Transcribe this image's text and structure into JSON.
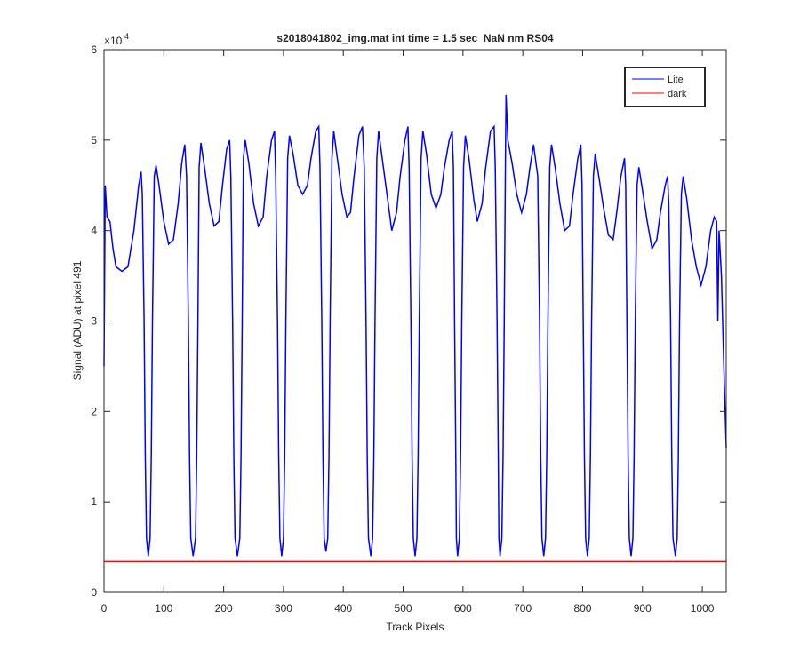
{
  "chart_data": {
    "type": "line",
    "title": "s2018041802_img.mat int time = 1.5 sec  NaN nm RS04",
    "x_label": "Track Pixels",
    "y_label": "Signal (ADU) at pixel 491",
    "y_exponent": {
      "base": "×10",
      "power": "4"
    },
    "xlim": [
      0,
      1040
    ],
    "ylim": [
      0,
      6
    ],
    "xticks": [
      0,
      100,
      200,
      300,
      400,
      500,
      600,
      700,
      800,
      900,
      1000
    ],
    "yticks": [
      0,
      1,
      2,
      3,
      4,
      5,
      6
    ],
    "grid": false,
    "legend": "northeast",
    "series": [
      {
        "name": "Lite",
        "color": "#0000ff",
        "x": [
          0,
          2,
          5,
          10,
          15,
          20,
          30,
          40,
          50,
          58,
          62,
          64,
          67,
          69,
          71,
          74,
          77,
          79,
          81,
          84,
          87,
          92,
          100,
          108,
          116,
          124,
          130,
          135,
          138,
          141,
          143,
          145,
          149,
          153,
          155,
          157,
          159,
          162,
          168,
          176,
          184,
          192,
          198,
          205,
          210,
          212,
          215,
          217,
          219,
          223,
          227,
          229,
          231,
          233,
          236,
          242,
          250,
          258,
          266,
          272,
          280,
          285,
          287,
          290,
          292,
          294,
          297,
          300,
          302,
          304,
          307,
          310,
          316,
          324,
          332,
          340,
          346,
          354,
          359,
          361,
          364,
          366,
          368,
          371,
          374,
          376,
          378,
          381,
          384,
          390,
          398,
          406,
          412,
          418,
          426,
          432,
          435,
          438,
          440,
          442,
          446,
          449,
          451,
          453,
          456,
          459,
          465,
          473,
          481,
          489,
          495,
          503,
          508,
          510,
          513,
          515,
          517,
          520,
          523,
          525,
          527,
          530,
          533,
          539,
          547,
          555,
          563,
          569,
          577,
          582,
          584,
          586,
          588,
          589,
          591,
          594,
          596,
          598,
          601,
          604,
          610,
          618,
          624,
          632,
          638,
          646,
          652,
          654,
          657,
          659,
          660,
          662,
          665,
          667,
          669,
          671,
          672,
          675,
          682,
          690,
          698,
          706,
          712,
          718,
          725,
          728,
          730,
          732,
          735,
          738,
          740,
          742,
          745,
          748,
          754,
          762,
          770,
          778,
          784,
          792,
          797,
          799,
          801,
          803,
          805,
          808,
          811,
          813,
          815,
          818,
          821,
          827,
          835,
          843,
          851,
          857,
          864,
          870,
          872,
          874,
          876,
          878,
          881,
          884,
          886,
          888,
          891,
          894,
          900,
          908,
          916,
          924,
          930,
          938,
          942,
          944,
          947,
          949,
          951,
          955,
          958,
          960,
          962,
          965,
          968,
          974,
          982,
          990,
          998,
          1006,
          1014,
          1020,
          1024,
          1026,
          1028,
          1032,
          1036,
          1040
        ],
        "values": [
          2.5,
          4.5,
          4.15,
          4.1,
          3.8,
          3.6,
          3.55,
          3.6,
          4.0,
          4.5,
          4.65,
          4.4,
          3.0,
          1.5,
          0.6,
          0.4,
          0.6,
          1.5,
          3.0,
          4.6,
          4.72,
          4.5,
          4.1,
          3.85,
          3.9,
          4.3,
          4.75,
          4.95,
          4.6,
          3.0,
          1.5,
          0.6,
          0.4,
          0.6,
          1.5,
          3.0,
          4.7,
          4.97,
          4.7,
          4.3,
          4.05,
          4.1,
          4.5,
          4.9,
          5.0,
          4.6,
          3.0,
          1.5,
          0.6,
          0.4,
          0.6,
          1.5,
          3.0,
          4.8,
          5.0,
          4.75,
          4.3,
          4.05,
          4.15,
          4.6,
          5.0,
          5.1,
          4.6,
          3.0,
          1.5,
          0.6,
          0.4,
          0.6,
          1.5,
          3.0,
          4.8,
          5.05,
          4.85,
          4.5,
          4.4,
          4.5,
          4.8,
          5.1,
          5.15,
          4.7,
          3.0,
          1.5,
          0.6,
          0.45,
          0.6,
          1.5,
          3.0,
          4.8,
          5.1,
          4.8,
          4.4,
          4.15,
          4.2,
          4.6,
          5.05,
          5.15,
          4.7,
          3.0,
          1.5,
          0.6,
          0.4,
          0.6,
          1.5,
          3.0,
          4.8,
          5.1,
          4.8,
          4.4,
          4.0,
          4.2,
          4.6,
          5.0,
          5.15,
          4.7,
          3.0,
          1.5,
          0.6,
          0.4,
          0.6,
          1.5,
          3.0,
          4.8,
          5.1,
          4.85,
          4.4,
          4.25,
          4.4,
          4.7,
          5.0,
          5.1,
          4.7,
          3.0,
          1.5,
          0.6,
          0.4,
          0.6,
          1.5,
          3.0,
          4.7,
          5.05,
          4.8,
          4.35,
          4.1,
          4.3,
          4.7,
          5.1,
          5.15,
          4.7,
          3.0,
          1.5,
          0.6,
          0.4,
          0.6,
          1.5,
          3.0,
          4.8,
          5.5,
          5.0,
          4.75,
          4.4,
          4.2,
          4.4,
          4.7,
          4.95,
          4.6,
          3.0,
          1.5,
          0.6,
          0.4,
          0.6,
          1.5,
          3.0,
          4.7,
          4.95,
          4.7,
          4.3,
          4.0,
          4.05,
          4.4,
          4.8,
          4.95,
          4.5,
          3.0,
          1.5,
          0.6,
          0.4,
          0.6,
          1.5,
          3.0,
          4.6,
          4.85,
          4.6,
          4.25,
          3.95,
          3.9,
          4.2,
          4.6,
          4.8,
          4.5,
          3.0,
          1.5,
          0.6,
          0.4,
          0.6,
          1.5,
          3.0,
          4.5,
          4.7,
          4.45,
          4.1,
          3.8,
          3.9,
          4.2,
          4.5,
          4.6,
          4.3,
          3.0,
          1.5,
          0.6,
          0.4,
          0.6,
          1.5,
          3.0,
          4.4,
          4.6,
          4.35,
          3.9,
          3.6,
          3.4,
          3.6,
          4.0,
          4.15,
          4.1,
          3.0,
          4.0,
          3.5,
          2.5,
          1.6
        ]
      },
      {
        "name": "dark",
        "color": "#ff0000",
        "x": [
          0,
          1040
        ],
        "values": [
          0.34,
          0.34
        ]
      }
    ]
  }
}
